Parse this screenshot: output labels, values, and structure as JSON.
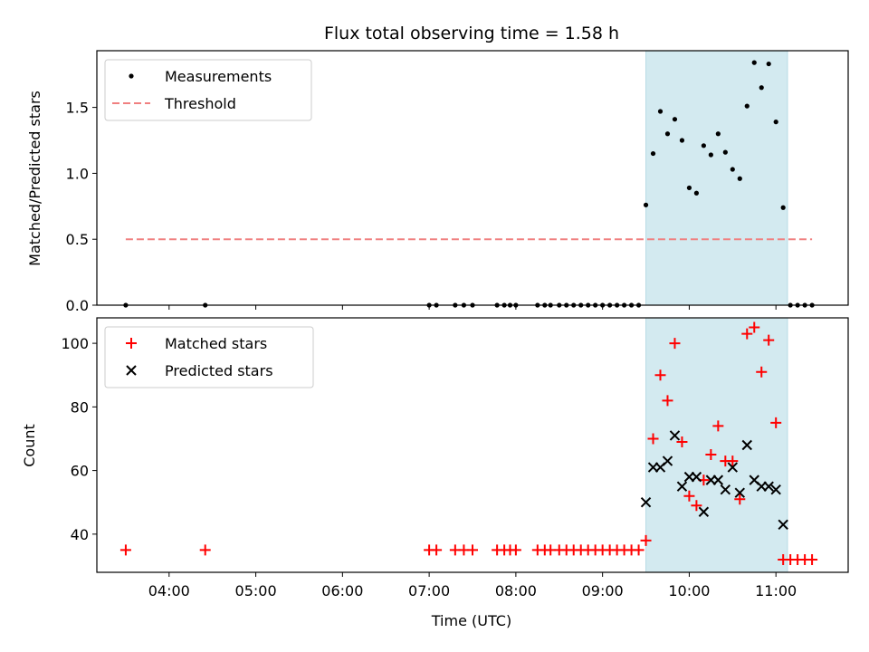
{
  "chart_data": [
    {
      "type": "scatter",
      "title": "Flux total observing time = 1.58 h",
      "xlabel": "",
      "ylabel": "Matched/Predicted stars",
      "xlim": [
        "03:10",
        "11:50"
      ],
      "ylim": [
        0,
        1.93
      ],
      "yticks": [
        "0.0",
        "0.5",
        "1.0",
        "1.5"
      ],
      "legend": "top-left",
      "highlight_span": {
        "from": "09:30",
        "to": "11:08",
        "color": "#d3eaf0"
      },
      "series": [
        {
          "name": "Measurements",
          "marker": "dot",
          "color": "#000000",
          "points": [
            [
              "03:30",
              0
            ],
            [
              "04:25",
              0
            ],
            [
              "07:00",
              0
            ],
            [
              "07:05",
              0
            ],
            [
              "07:18",
              0
            ],
            [
              "07:24",
              0
            ],
            [
              "07:30",
              0
            ],
            [
              "07:47",
              0
            ],
            [
              "07:52",
              0
            ],
            [
              "07:56",
              0
            ],
            [
              "08:00",
              0
            ],
            [
              "08:15",
              0
            ],
            [
              "08:20",
              0
            ],
            [
              "08:24",
              0
            ],
            [
              "08:30",
              0
            ],
            [
              "08:35",
              0
            ],
            [
              "08:40",
              0
            ],
            [
              "08:45",
              0
            ],
            [
              "08:50",
              0
            ],
            [
              "08:55",
              0
            ],
            [
              "09:00",
              0
            ],
            [
              "09:05",
              0
            ],
            [
              "09:10",
              0
            ],
            [
              "09:15",
              0
            ],
            [
              "09:20",
              0
            ],
            [
              "09:25",
              0
            ],
            [
              "09:30",
              0.76
            ],
            [
              "09:35",
              1.15
            ],
            [
              "09:40",
              1.47
            ],
            [
              "09:45",
              1.3
            ],
            [
              "09:50",
              1.41
            ],
            [
              "09:55",
              1.25
            ],
            [
              "10:00",
              0.89
            ],
            [
              "10:05",
              0.85
            ],
            [
              "10:10",
              1.21
            ],
            [
              "10:15",
              1.14
            ],
            [
              "10:20",
              1.3
            ],
            [
              "10:25",
              1.16
            ],
            [
              "10:30",
              1.03
            ],
            [
              "10:35",
              0.96
            ],
            [
              "10:40",
              1.51
            ],
            [
              "10:45",
              1.84
            ],
            [
              "10:50",
              1.65
            ],
            [
              "10:55",
              1.83
            ],
            [
              "11:00",
              1.39
            ],
            [
              "11:05",
              0.74
            ],
            [
              "11:10",
              0
            ],
            [
              "11:15",
              0
            ],
            [
              "11:20",
              0
            ],
            [
              "11:25",
              0
            ]
          ]
        },
        {
          "name": "Threshold",
          "marker": "dashed-line",
          "color": "#f08080",
          "points": [
            [
              "03:30",
              0.5
            ],
            [
              "11:25",
              0.5
            ]
          ]
        }
      ]
    },
    {
      "type": "scatter",
      "title": "",
      "xlabel": "Time (UTC)",
      "ylabel": "Count",
      "xlim": [
        "03:10",
        "11:50"
      ],
      "ylim": [
        28,
        108
      ],
      "xticks": [
        "04:00",
        "05:00",
        "06:00",
        "07:00",
        "08:00",
        "09:00",
        "10:00",
        "11:00"
      ],
      "yticks": [
        "40",
        "60",
        "80",
        "100"
      ],
      "legend": "top-left",
      "highlight_span": {
        "from": "09:30",
        "to": "11:08",
        "color": "#d3eaf0"
      },
      "series": [
        {
          "name": "Matched stars",
          "marker": "plus",
          "color": "#ff0000",
          "points": [
            [
              "03:30",
              35
            ],
            [
              "04:25",
              35
            ],
            [
              "07:00",
              35
            ],
            [
              "07:05",
              35
            ],
            [
              "07:18",
              35
            ],
            [
              "07:24",
              35
            ],
            [
              "07:30",
              35
            ],
            [
              "07:47",
              35
            ],
            [
              "07:52",
              35
            ],
            [
              "07:56",
              35
            ],
            [
              "08:00",
              35
            ],
            [
              "08:15",
              35
            ],
            [
              "08:20",
              35
            ],
            [
              "08:24",
              35
            ],
            [
              "08:30",
              35
            ],
            [
              "08:35",
              35
            ],
            [
              "08:40",
              35
            ],
            [
              "08:45",
              35
            ],
            [
              "08:50",
              35
            ],
            [
              "08:55",
              35
            ],
            [
              "09:00",
              35
            ],
            [
              "09:05",
              35
            ],
            [
              "09:10",
              35
            ],
            [
              "09:15",
              35
            ],
            [
              "09:20",
              35
            ],
            [
              "09:25",
              35
            ],
            [
              "09:30",
              38
            ],
            [
              "09:35",
              70
            ],
            [
              "09:40",
              90
            ],
            [
              "09:45",
              82
            ],
            [
              "09:50",
              100
            ],
            [
              "09:55",
              69
            ],
            [
              "10:00",
              52
            ],
            [
              "10:05",
              49
            ],
            [
              "10:10",
              57
            ],
            [
              "10:15",
              65
            ],
            [
              "10:20",
              74
            ],
            [
              "10:25",
              63
            ],
            [
              "10:30",
              63
            ],
            [
              "10:35",
              51
            ],
            [
              "10:40",
              103
            ],
            [
              "10:45",
              105
            ],
            [
              "10:50",
              91
            ],
            [
              "10:55",
              101
            ],
            [
              "11:00",
              75
            ],
            [
              "11:05",
              32
            ],
            [
              "11:10",
              32
            ],
            [
              "11:15",
              32
            ],
            [
              "11:20",
              32
            ],
            [
              "11:25",
              32
            ]
          ]
        },
        {
          "name": "Predicted stars",
          "marker": "x",
          "color": "#000000",
          "points": [
            [
              "09:30",
              50
            ],
            [
              "09:35",
              61
            ],
            [
              "09:40",
              61
            ],
            [
              "09:45",
              63
            ],
            [
              "09:50",
              71
            ],
            [
              "09:55",
              55
            ],
            [
              "10:00",
              58
            ],
            [
              "10:05",
              58
            ],
            [
              "10:10",
              47
            ],
            [
              "10:15",
              57
            ],
            [
              "10:20",
              57
            ],
            [
              "10:25",
              54
            ],
            [
              "10:30",
              61
            ],
            [
              "10:35",
              53
            ],
            [
              "10:40",
              68
            ],
            [
              "10:45",
              57
            ],
            [
              "10:50",
              55
            ],
            [
              "10:55",
              55
            ],
            [
              "11:00",
              54
            ],
            [
              "11:05",
              43
            ]
          ]
        }
      ]
    }
  ]
}
